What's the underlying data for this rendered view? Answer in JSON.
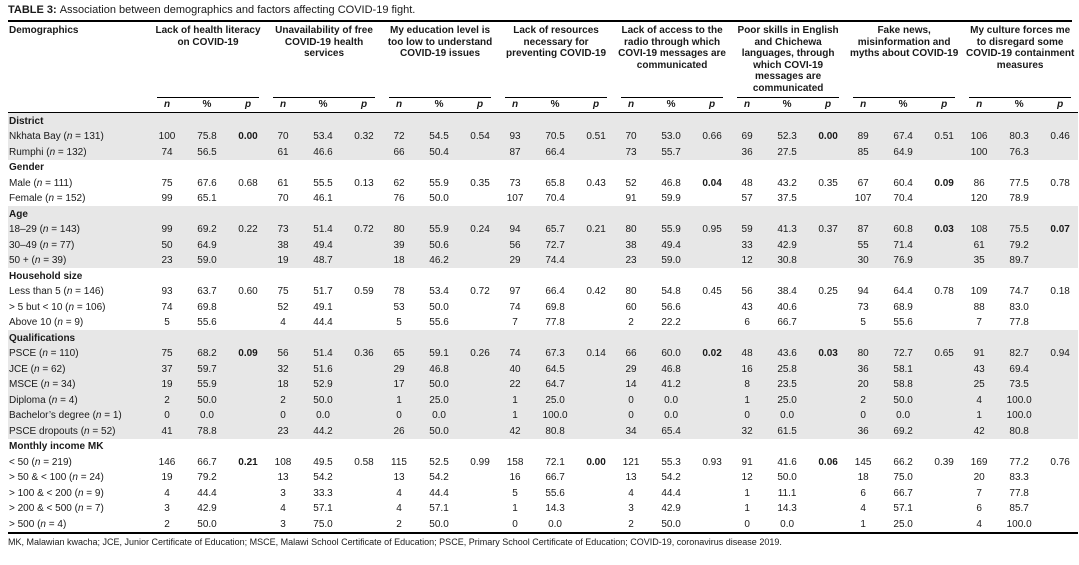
{
  "title": {
    "tag": "TABLE 3:",
    "text": "Association between demographics and factors affecting COVID-19 fight."
  },
  "columns": {
    "demographics": "Demographics",
    "sub": [
      "n",
      "%",
      "p"
    ],
    "factors": [
      "Lack of health literacy on COVID-19",
      "Unavailability of free COVID-19 health services",
      "My education level is too low to understand COVID-19 issues",
      "Lack of resources necessary for preventing COVID-19",
      "Lack of access to the radio through which COVI-19 messages are communicated",
      "Poor skills in English and Chichewa languages, through which COVI-19 messages are communicated",
      "Fake news, misinformation and myths about COVID-19",
      "My culture forces me to disregard some COVID-19 containment measures"
    ]
  },
  "sections": [
    {
      "name": "District",
      "shaded": true,
      "rows": [
        {
          "label": "Nkhata Bay (n = 131)",
          "boldP": [
            0,
            5
          ],
          "groups": [
            [
              "100",
              "75.8",
              "0.00"
            ],
            [
              "70",
              "53.4",
              "0.32"
            ],
            [
              "72",
              "54.5",
              "0.54"
            ],
            [
              "93",
              "70.5",
              "0.51"
            ],
            [
              "70",
              "53.0",
              "0.66"
            ],
            [
              "69",
              "52.3",
              "0.00"
            ],
            [
              "89",
              "67.4",
              "0.51"
            ],
            [
              "106",
              "80.3",
              "0.46"
            ]
          ]
        },
        {
          "label": "Rumphi (n = 132)",
          "boldP": [],
          "groups": [
            [
              "74",
              "56.5",
              ""
            ],
            [
              "61",
              "46.6",
              ""
            ],
            [
              "66",
              "50.4",
              ""
            ],
            [
              "87",
              "66.4",
              ""
            ],
            [
              "73",
              "55.7",
              ""
            ],
            [
              "36",
              "27.5",
              ""
            ],
            [
              "85",
              "64.9",
              ""
            ],
            [
              "100",
              "76.3",
              ""
            ]
          ]
        }
      ]
    },
    {
      "name": "Gender",
      "shaded": false,
      "rows": [
        {
          "label": "Male (n = 111)",
          "boldP": [
            4,
            6
          ],
          "groups": [
            [
              "75",
              "67.6",
              "0.68"
            ],
            [
              "61",
              "55.5",
              "0.13"
            ],
            [
              "62",
              "55.9",
              "0.35"
            ],
            [
              "73",
              "65.8",
              "0.43"
            ],
            [
              "52",
              "46.8",
              "0.04"
            ],
            [
              "48",
              "43.2",
              "0.35"
            ],
            [
              "67",
              "60.4",
              "0.09"
            ],
            [
              "86",
              "77.5",
              "0.78"
            ]
          ]
        },
        {
          "label": "Female (n = 152)",
          "boldP": [],
          "groups": [
            [
              "99",
              "65.1",
              ""
            ],
            [
              "70",
              "46.1",
              ""
            ],
            [
              "76",
              "50.0",
              ""
            ],
            [
              "107",
              "70.4",
              ""
            ],
            [
              "91",
              "59.9",
              ""
            ],
            [
              "57",
              "37.5",
              ""
            ],
            [
              "107",
              "70.4",
              ""
            ],
            [
              "120",
              "78.9",
              ""
            ]
          ]
        }
      ]
    },
    {
      "name": "Age",
      "shaded": true,
      "rows": [
        {
          "label": "18–29 (n = 143)",
          "boldP": [
            6,
            7
          ],
          "groups": [
            [
              "99",
              "69.2",
              "0.22"
            ],
            [
              "73",
              "51.4",
              "0.72"
            ],
            [
              "80",
              "55.9",
              "0.24"
            ],
            [
              "94",
              "65.7",
              "0.21"
            ],
            [
              "80",
              "55.9",
              "0.95"
            ],
            [
              "59",
              "41.3",
              "0.37"
            ],
            [
              "87",
              "60.8",
              "0.03"
            ],
            [
              "108",
              "75.5",
              "0.07"
            ]
          ]
        },
        {
          "label": "30–49 (n = 77)",
          "boldP": [],
          "groups": [
            [
              "50",
              "64.9",
              ""
            ],
            [
              "38",
              "49.4",
              ""
            ],
            [
              "39",
              "50.6",
              ""
            ],
            [
              "56",
              "72.7",
              ""
            ],
            [
              "38",
              "49.4",
              ""
            ],
            [
              "33",
              "42.9",
              ""
            ],
            [
              "55",
              "71.4",
              ""
            ],
            [
              "61",
              "79.2",
              ""
            ]
          ]
        },
        {
          "label": "50 + (n = 39)",
          "boldP": [],
          "groups": [
            [
              "23",
              "59.0",
              ""
            ],
            [
              "19",
              "48.7",
              ""
            ],
            [
              "18",
              "46.2",
              ""
            ],
            [
              "29",
              "74.4",
              ""
            ],
            [
              "23",
              "59.0",
              ""
            ],
            [
              "12",
              "30.8",
              ""
            ],
            [
              "30",
              "76.9",
              ""
            ],
            [
              "35",
              "89.7",
              ""
            ]
          ]
        }
      ]
    },
    {
      "name": "Household size",
      "shaded": false,
      "rows": [
        {
          "label": "Less than 5 (n = 146)",
          "boldP": [],
          "groups": [
            [
              "93",
              "63.7",
              "0.60"
            ],
            [
              "75",
              "51.7",
              "0.59"
            ],
            [
              "78",
              "53.4",
              "0.72"
            ],
            [
              "97",
              "66.4",
              "0.42"
            ],
            [
              "80",
              "54.8",
              "0.45"
            ],
            [
              "56",
              "38.4",
              "0.25"
            ],
            [
              "94",
              "64.4",
              "0.78"
            ],
            [
              "109",
              "74.7",
              "0.18"
            ]
          ]
        },
        {
          "label": "> 5 but < 10 (n = 106)",
          "boldP": [],
          "groups": [
            [
              "74",
              "69.8",
              ""
            ],
            [
              "52",
              "49.1",
              ""
            ],
            [
              "53",
              "50.0",
              ""
            ],
            [
              "74",
              "69.8",
              ""
            ],
            [
              "60",
              "56.6",
              ""
            ],
            [
              "43",
              "40.6",
              ""
            ],
            [
              "73",
              "68.9",
              ""
            ],
            [
              "88",
              "83.0",
              ""
            ]
          ]
        },
        {
          "label": "Above 10 (n = 9)",
          "boldP": [],
          "groups": [
            [
              "5",
              "55.6",
              ""
            ],
            [
              "4",
              "44.4",
              ""
            ],
            [
              "5",
              "55.6",
              ""
            ],
            [
              "7",
              "77.8",
              ""
            ],
            [
              "2",
              "22.2",
              ""
            ],
            [
              "6",
              "66.7",
              ""
            ],
            [
              "5",
              "55.6",
              ""
            ],
            [
              "7",
              "77.8",
              ""
            ]
          ]
        }
      ]
    },
    {
      "name": "Qualifications",
      "shaded": true,
      "rows": [
        {
          "label": "PSCE (n = 110)",
          "boldP": [
            0,
            4,
            5
          ],
          "groups": [
            [
              "75",
              "68.2",
              "0.09"
            ],
            [
              "56",
              "51.4",
              "0.36"
            ],
            [
              "65",
              "59.1",
              "0.26"
            ],
            [
              "74",
              "67.3",
              "0.14"
            ],
            [
              "66",
              "60.0",
              "0.02"
            ],
            [
              "48",
              "43.6",
              "0.03"
            ],
            [
              "80",
              "72.7",
              "0.65"
            ],
            [
              "91",
              "82.7",
              "0.94"
            ]
          ]
        },
        {
          "label": "JCE (n = 62)",
          "boldP": [],
          "groups": [
            [
              "37",
              "59.7",
              ""
            ],
            [
              "32",
              "51.6",
              ""
            ],
            [
              "29",
              "46.8",
              ""
            ],
            [
              "40",
              "64.5",
              ""
            ],
            [
              "29",
              "46.8",
              ""
            ],
            [
              "16",
              "25.8",
              ""
            ],
            [
              "36",
              "58.1",
              ""
            ],
            [
              "43",
              "69.4",
              ""
            ]
          ]
        },
        {
          "label": "MSCE (n = 34)",
          "boldP": [],
          "groups": [
            [
              "19",
              "55.9",
              ""
            ],
            [
              "18",
              "52.9",
              ""
            ],
            [
              "17",
              "50.0",
              ""
            ],
            [
              "22",
              "64.7",
              ""
            ],
            [
              "14",
              "41.2",
              ""
            ],
            [
              "8",
              "23.5",
              ""
            ],
            [
              "20",
              "58.8",
              ""
            ],
            [
              "25",
              "73.5",
              ""
            ]
          ]
        },
        {
          "label": "Diploma (n = 4)",
          "boldP": [],
          "groups": [
            [
              "2",
              "50.0",
              ""
            ],
            [
              "2",
              "50.0",
              ""
            ],
            [
              "1",
              "25.0",
              ""
            ],
            [
              "1",
              "25.0",
              ""
            ],
            [
              "0",
              "0.0",
              ""
            ],
            [
              "1",
              "25.0",
              ""
            ],
            [
              "2",
              "50.0",
              ""
            ],
            [
              "4",
              "100.0",
              ""
            ]
          ]
        },
        {
          "label": "Bachelor’s degree (n = 1)",
          "boldP": [],
          "groups": [
            [
              "0",
              "0.0",
              ""
            ],
            [
              "0",
              "0.0",
              ""
            ],
            [
              "0",
              "0.0",
              ""
            ],
            [
              "1",
              "100.0",
              ""
            ],
            [
              "0",
              "0.0",
              ""
            ],
            [
              "0",
              "0.0",
              ""
            ],
            [
              "0",
              "0.0",
              ""
            ],
            [
              "1",
              "100.0",
              ""
            ]
          ]
        },
        {
          "label": "PSCE dropouts (n = 52)",
          "boldP": [],
          "groups": [
            [
              "41",
              "78.8",
              ""
            ],
            [
              "23",
              "44.2",
              ""
            ],
            [
              "26",
              "50.0",
              ""
            ],
            [
              "42",
              "80.8",
              ""
            ],
            [
              "34",
              "65.4",
              ""
            ],
            [
              "32",
              "61.5",
              ""
            ],
            [
              "36",
              "69.2",
              ""
            ],
            [
              "42",
              "80.8",
              ""
            ]
          ]
        }
      ]
    },
    {
      "name": "Monthly income MK",
      "shaded": false,
      "rows": [
        {
          "label": "< 50 (n = 219)",
          "boldP": [
            0,
            3,
            5
          ],
          "groups": [
            [
              "146",
              "66.7",
              "0.21"
            ],
            [
              "108",
              "49.5",
              "0.58"
            ],
            [
              "115",
              "52.5",
              "0.99"
            ],
            [
              "158",
              "72.1",
              "0.00"
            ],
            [
              "121",
              "55.3",
              "0.93"
            ],
            [
              "91",
              "41.6",
              "0.06"
            ],
            [
              "145",
              "66.2",
              "0.39"
            ],
            [
              "169",
              "77.2",
              "0.76"
            ]
          ]
        },
        {
          "label": "> 50 & < 100 (n = 24)",
          "boldP": [],
          "groups": [
            [
              "19",
              "79.2",
              ""
            ],
            [
              "13",
              "54.2",
              ""
            ],
            [
              "13",
              "54.2",
              ""
            ],
            [
              "16",
              "66.7",
              ""
            ],
            [
              "13",
              "54.2",
              ""
            ],
            [
              "12",
              "50.0",
              ""
            ],
            [
              "18",
              "75.0",
              ""
            ],
            [
              "20",
              "83.3",
              ""
            ]
          ]
        },
        {
          "label": "> 100 & < 200 (n = 9)",
          "boldP": [],
          "groups": [
            [
              "4",
              "44.4",
              ""
            ],
            [
              "3",
              "33.3",
              ""
            ],
            [
              "4",
              "44.4",
              ""
            ],
            [
              "5",
              "55.6",
              ""
            ],
            [
              "4",
              "44.4",
              ""
            ],
            [
              "1",
              "11.1",
              ""
            ],
            [
              "6",
              "66.7",
              ""
            ],
            [
              "7",
              "77.8",
              ""
            ]
          ]
        },
        {
          "label": "> 200 & < 500 (n = 7)",
          "boldP": [],
          "groups": [
            [
              "3",
              "42.9",
              ""
            ],
            [
              "4",
              "57.1",
              ""
            ],
            [
              "4",
              "57.1",
              ""
            ],
            [
              "1",
              "14.3",
              ""
            ],
            [
              "3",
              "42.9",
              ""
            ],
            [
              "1",
              "14.3",
              ""
            ],
            [
              "4",
              "57.1",
              ""
            ],
            [
              "6",
              "85.7",
              ""
            ]
          ]
        },
        {
          "label": "> 500 (n = 4)",
          "boldP": [],
          "groups": [
            [
              "2",
              "50.0",
              ""
            ],
            [
              "3",
              "75.0",
              ""
            ],
            [
              "2",
              "50.0",
              ""
            ],
            [
              "0",
              "0.0",
              ""
            ],
            [
              "2",
              "50.0",
              ""
            ],
            [
              "0",
              "0.0",
              ""
            ],
            [
              "1",
              "25.0",
              ""
            ],
            [
              "4",
              "100.0",
              ""
            ]
          ]
        }
      ]
    }
  ],
  "footnote": "MK, Malawian kwacha; JCE, Junior Certificate of Education; MSCE, Malawi School Certificate of Education; PSCE, Primary School Certificate of Education; COVID-19, coronavirus disease 2019."
}
